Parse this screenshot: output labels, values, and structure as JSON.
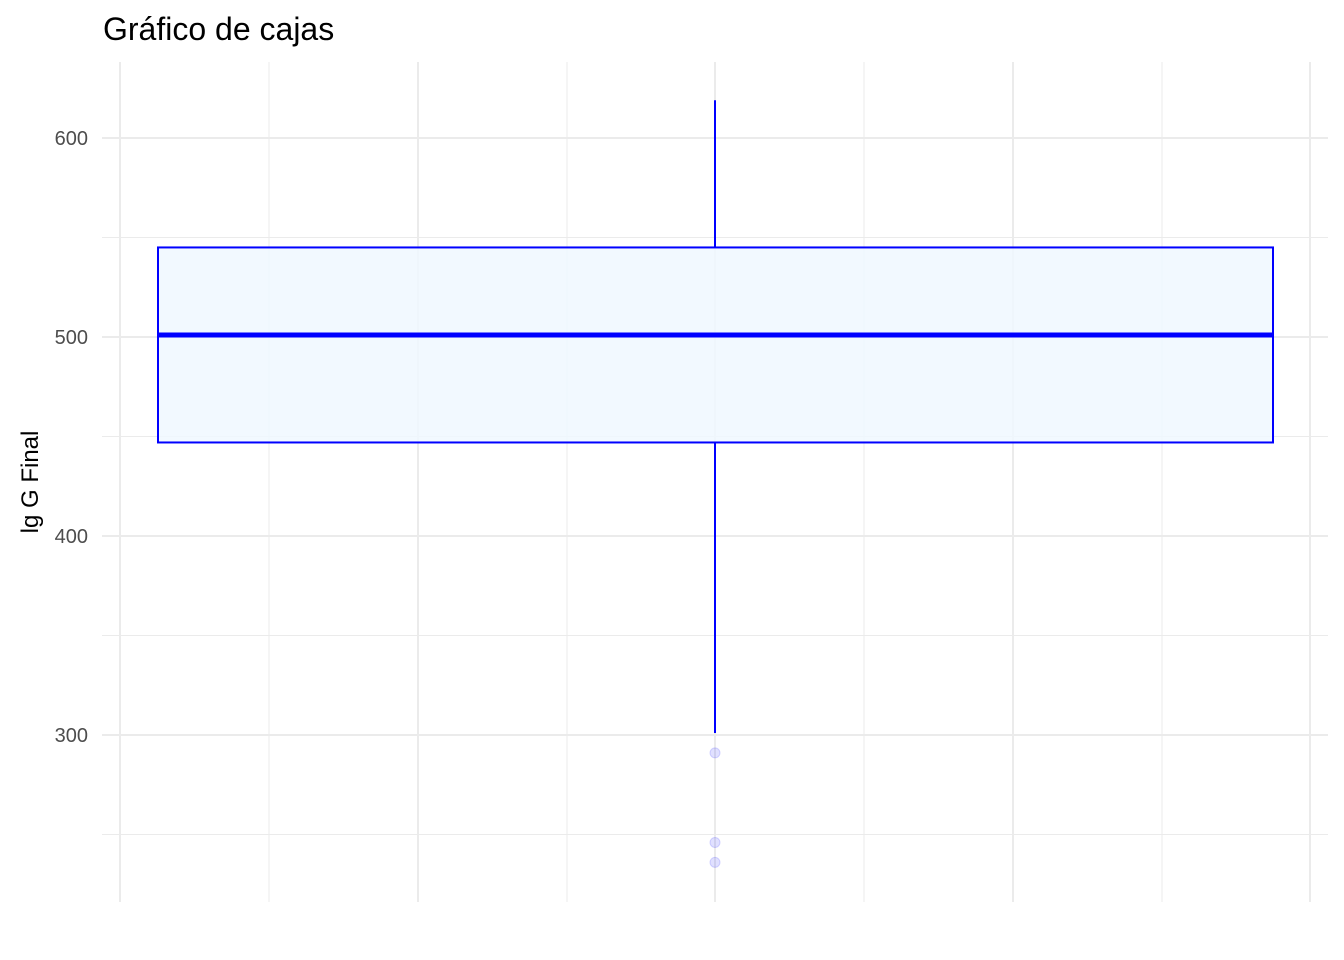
{
  "chart_data": {
    "type": "boxplot",
    "title": "Gráfico de cajas",
    "xlabel": "",
    "ylabel": "lg G Final",
    "ylim": [
      220,
      640
    ],
    "y_ticks": [
      300,
      400,
      500,
      600
    ],
    "y_tick_labels": [
      "300",
      "400",
      "500",
      "600"
    ],
    "grid": true,
    "legend": "none",
    "box": {
      "whisker_low": 301,
      "q1": 447,
      "median": 501,
      "q3": 545,
      "whisker_high": 619,
      "outliers": [
        291,
        246,
        236
      ]
    },
    "colors": {
      "box_outline": "#0000ff",
      "box_fill": "#f0f8ff",
      "outlier": "#0000ff",
      "grid": "#ebebeb",
      "tick_label": "#4d4d4d"
    }
  }
}
